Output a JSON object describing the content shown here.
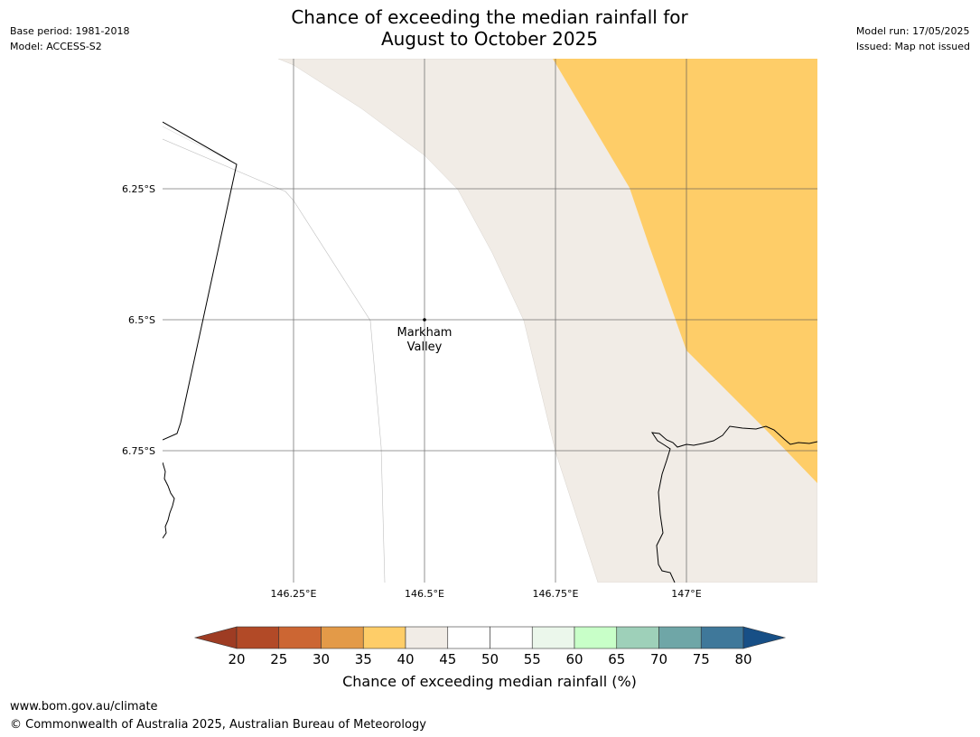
{
  "title_line1": "Chance of exceeding the median rainfall for",
  "title_line2": "August to October 2025",
  "meta_left": [
    "Base period: 1981-2018",
    "Model: ACCESS-S2"
  ],
  "meta_right": [
    "Model run: 17/05/2025",
    "Issued: Map not issued"
  ],
  "map": {
    "lat_labels": [
      "6.25°S",
      "6.5°S",
      "6.75°S"
    ],
    "lon_labels": [
      "146.25°E",
      "146.5°E",
      "146.75°E",
      "147°E"
    ],
    "place_name_line1": "Markham",
    "place_name_line2": "Valley"
  },
  "colorbar": {
    "ticks": [
      "20",
      "25",
      "30",
      "35",
      "40",
      "45",
      "50",
      "55",
      "60",
      "65",
      "70",
      "75",
      "80"
    ],
    "colors": [
      "#9e3c23",
      "#b24a27",
      "#cc6633",
      "#e39a48",
      "#fecd68",
      "#f1ece6",
      "#ffffff",
      "#ffffff",
      "#ebf7eb",
      "#c8ffc8",
      "#9ed0b9",
      "#6fa6a7",
      "#3f789a",
      "#174f86"
    ],
    "label": "Chance of exceeding median rainfall (%)"
  },
  "footer_url": "www.bom.gov.au/climate",
  "footer_copy": "© Commonwealth of Australia 2025, Australian Bureau of Meteorology"
}
